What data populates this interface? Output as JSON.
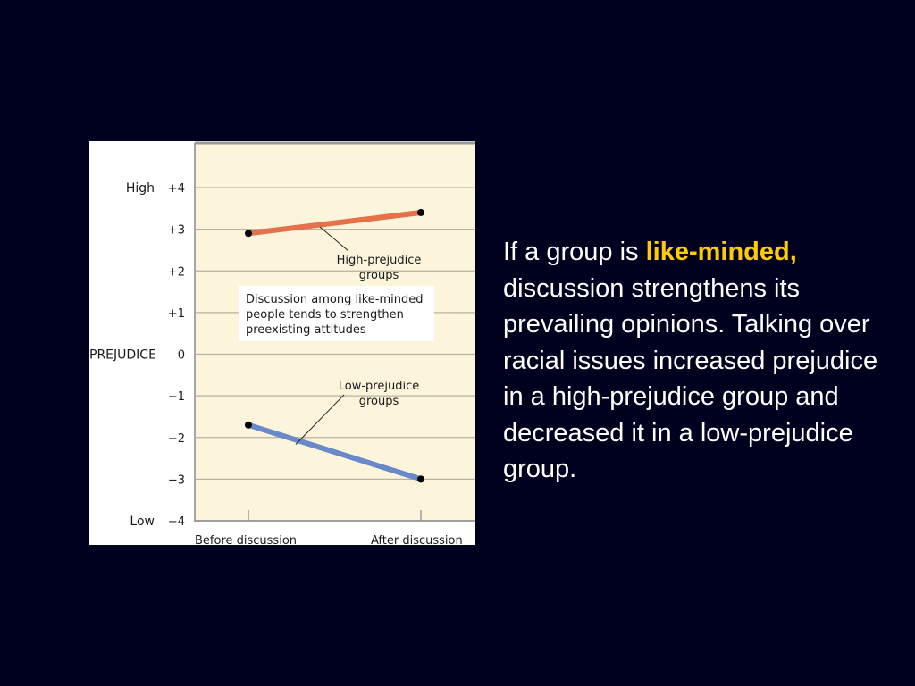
{
  "colors": {
    "background": "#00001f",
    "plot_bg": "#fdf4dc",
    "high_series": "#e4714a",
    "low_series": "#6a89c8",
    "caption_text": "#ffffff",
    "highlight": "#ffcc00"
  },
  "chart_data": {
    "type": "line",
    "ylabel": "PREJUDICE",
    "ylim": [
      -4,
      4
    ],
    "yticks": [
      {
        "value": 4,
        "label": "+4"
      },
      {
        "value": 3,
        "label": "+3"
      },
      {
        "value": 2,
        "label": "+2"
      },
      {
        "value": 1,
        "label": "+1"
      },
      {
        "value": 0,
        "label": "0"
      },
      {
        "value": -1,
        "label": "−1"
      },
      {
        "value": -2,
        "label": "−2"
      },
      {
        "value": -3,
        "label": "−3"
      },
      {
        "value": -4,
        "label": "−4"
      }
    ],
    "y_extreme_labels": {
      "top": "High",
      "bottom": "Low"
    },
    "categories": [
      "Before discussion",
      "After discussion"
    ],
    "series": [
      {
        "name": "High-prejudice groups",
        "label_lines": [
          "High-prejudice",
          "groups"
        ],
        "values": [
          2.9,
          3.4
        ],
        "color": "#e4714a"
      },
      {
        "name": "Low-prejudice groups",
        "label_lines": [
          "Low-prejudice",
          "groups"
        ],
        "values": [
          -1.7,
          -3.0
        ],
        "color": "#6a89c8"
      }
    ],
    "annotation_lines": [
      "Discussion among like-minded",
      "people tends to strengthen",
      "preexisting attitudes"
    ],
    "grid": true
  },
  "caption": {
    "lead": "If a group is ",
    "highlight": "like-minded,",
    "rest": " discussion strengthens its prevailing opinions. Talking over racial issues increased prejudice in a high-prejudice group and decreased it in a low-prejudice group."
  }
}
